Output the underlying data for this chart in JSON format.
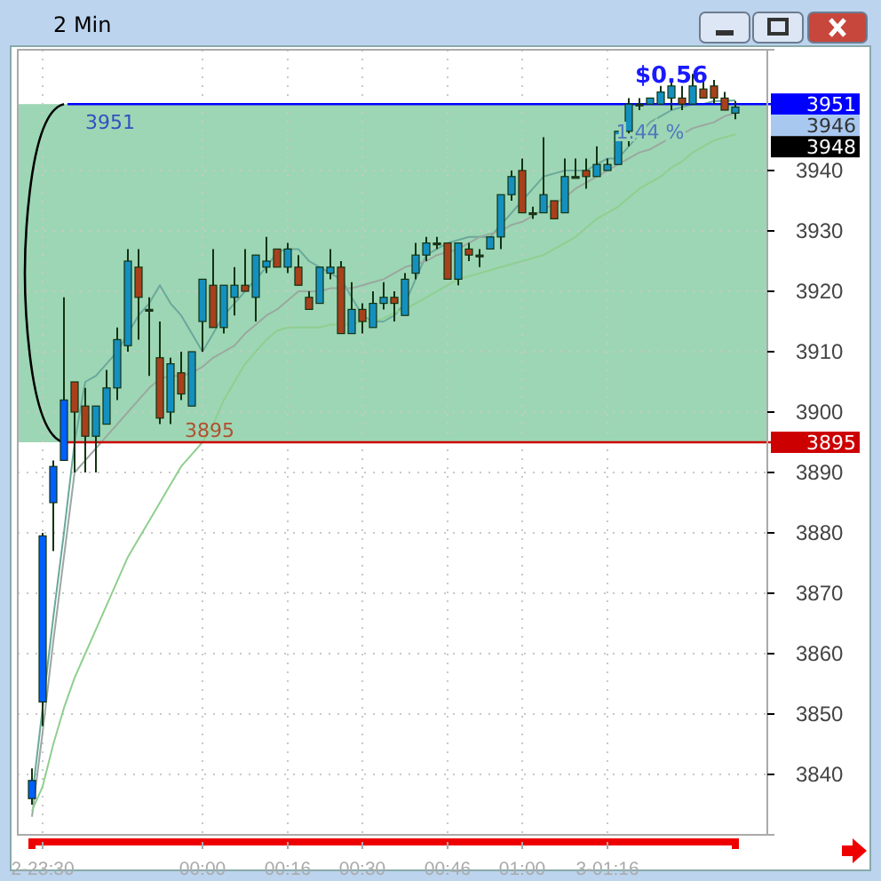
{
  "chart_data": {
    "type": "candlestick",
    "title": "2 Min",
    "categories": [
      null,
      "2-23:30",
      null,
      null,
      null,
      null,
      null,
      null,
      null,
      null,
      null,
      null,
      null,
      null,
      null,
      null,
      "00:00",
      null,
      null,
      null,
      null,
      null,
      null,
      null,
      "00:16",
      null,
      null,
      null,
      null,
      null,
      null,
      "00:30",
      null,
      null,
      null,
      null,
      null,
      null,
      null,
      "00:46",
      null,
      null,
      null,
      null,
      null,
      null,
      "01:00",
      null,
      null,
      null,
      null,
      null,
      null,
      null,
      "3-01:16",
      null,
      null,
      null,
      null,
      null,
      null,
      null,
      null,
      null,
      null,
      null,
      null
    ],
    "ohlc": [
      [
        3836,
        3841,
        3835,
        3839
      ],
      [
        3852,
        3880,
        3848,
        3879.5
      ],
      [
        3885,
        3892,
        3877,
        3891
      ],
      [
        3892,
        3919,
        3892,
        3902
      ],
      [
        3905,
        3905,
        3890,
        3900
      ],
      [
        3901,
        3904,
        3890,
        3896
      ],
      [
        3896,
        3901,
        3890,
        3901
      ],
      [
        3898,
        3907,
        3898,
        3904
      ],
      [
        3904,
        3914,
        3902,
        3912
      ],
      [
        3911,
        3927,
        3910,
        3925
      ],
      [
        3924,
        3927,
        3912,
        3919
      ],
      [
        3917,
        3919,
        3906,
        3917
      ],
      [
        3909,
        3915,
        3898,
        3899
      ],
      [
        3900,
        3909,
        3898,
        3908
      ],
      [
        3906.5,
        3910,
        3902,
        3903
      ],
      [
        3901,
        3910,
        3901,
        3910
      ],
      [
        3915,
        3922,
        3910,
        3922
      ],
      [
        3921,
        3927,
        3914,
        3914
      ],
      [
        3914,
        3921,
        3913,
        3921
      ],
      [
        3919,
        3924,
        3916,
        3921
      ],
      [
        3921,
        3927,
        3920,
        3920
      ],
      [
        3919,
        3926,
        3915,
        3926
      ],
      [
        3924,
        3929,
        3923,
        3925
      ],
      [
        3927,
        3927,
        3924,
        3924
      ],
      [
        3924,
        3928,
        3923,
        3927
      ],
      [
        3924,
        3926,
        3921,
        3921
      ],
      [
        3919,
        3920,
        3917,
        3917
      ],
      [
        3918,
        3924,
        3918,
        3924
      ],
      [
        3923,
        3927,
        3922,
        3924
      ],
      [
        3924,
        3925,
        3913,
        3913
      ],
      [
        3913,
        3921.5,
        3913,
        3917
      ],
      [
        3917,
        3918,
        3913,
        3915
      ],
      [
        3914,
        3920,
        3914,
        3918
      ],
      [
        3918,
        3921.5,
        3917,
        3919
      ],
      [
        3919,
        3920,
        3915,
        3918
      ],
      [
        3916,
        3923,
        3916,
        3922
      ],
      [
        3923,
        3928,
        3922,
        3926
      ],
      [
        3926,
        3929,
        3925,
        3928
      ],
      [
        3928,
        3929,
        3927,
        3928
      ],
      [
        3928,
        3928,
        3922,
        3922
      ],
      [
        3922,
        3928,
        3921,
        3928
      ],
      [
        3927,
        3928,
        3925,
        3926
      ],
      [
        3926,
        3927,
        3924,
        3926
      ],
      [
        3927,
        3929,
        3927,
        3929
      ],
      [
        3929,
        3936,
        3927,
        3936
      ],
      [
        3936,
        3940,
        3935,
        3939
      ],
      [
        3940,
        3942,
        3933,
        3933
      ],
      [
        3933,
        3934,
        3932,
        3933
      ],
      [
        3933,
        3945.5,
        3933,
        3936
      ],
      [
        3935,
        3935,
        3932,
        3932
      ],
      [
        3933,
        3942,
        3933,
        3939
      ],
      [
        3939,
        3942,
        3939,
        3939
      ],
      [
        3940,
        3942,
        3937,
        3939
      ],
      [
        3939,
        3944,
        3939,
        3941
      ],
      [
        3940,
        3942,
        3940,
        3941
      ],
      [
        3941,
        3946.5,
        3941,
        3946.5
      ],
      [
        3946.5,
        3952,
        3944,
        3951
      ],
      [
        3951,
        3952,
        3950,
        3951
      ],
      [
        3951,
        3952,
        3951,
        3952
      ],
      [
        3951,
        3954,
        3951,
        3953
      ],
      [
        3952,
        3955,
        3950,
        3954
      ],
      [
        3952,
        3954,
        3950,
        3951
      ],
      [
        3951,
        3956,
        3951,
        3954
      ],
      [
        3953.5,
        3955,
        3952,
        3952
      ],
      [
        3954,
        3955,
        3951,
        3952
      ],
      [
        3952,
        3953,
        3950,
        3950
      ],
      [
        3949.5,
        3951.5,
        3948.5,
        3950.5
      ]
    ],
    "colors": [
      "#0060ff",
      "#0060ff",
      "#0060ff",
      "#0060ff",
      "#a8401c",
      "#a8401c",
      "#1490c0",
      "#1490c0",
      "#1490c0",
      "#1490c0",
      "#a8401c",
      "#333333",
      "#a8401c",
      "#1490c0",
      "#a8401c",
      "#1490c0",
      "#1490c0",
      "#a8401c",
      "#1490c0",
      "#1490c0",
      "#a8401c",
      "#1490c0",
      "#1490c0",
      "#a8401c",
      "#1490c0",
      "#a8401c",
      "#a8401c",
      "#1490c0",
      "#1490c0",
      "#a8401c",
      "#1490c0",
      "#a8401c",
      "#1490c0",
      "#1490c0",
      "#a8401c",
      "#1490c0",
      "#1490c0",
      "#1490c0",
      "#333333",
      "#a8401c",
      "#1490c0",
      "#a8401c",
      "#333333",
      "#1490c0",
      "#1490c0",
      "#1490c0",
      "#a8401c",
      "#333333",
      "#1490c0",
      "#a8401c",
      "#1490c0",
      "#333333",
      "#a8401c",
      "#1490c0",
      "#1490c0",
      "#1490c0",
      "#1490c0",
      "#333333",
      "#1490c0",
      "#1490c0",
      "#1490c0",
      "#a8401c",
      "#1490c0",
      "#a8401c",
      "#a8401c",
      "#a8401c",
      "#1490c0"
    ],
    "series": [
      {
        "type": "line",
        "color": "#6aa89c",
        "values": [
          3836,
          3851,
          3866,
          3880,
          3895,
          3905,
          3906,
          3908,
          3910,
          3913,
          3916,
          3918,
          3921,
          3918,
          3916,
          3913,
          3910,
          3913,
          3916,
          3918,
          3920,
          3922,
          3924,
          3926.5,
          3927,
          3927,
          3925,
          3924,
          3923,
          3922,
          3919,
          3916,
          3915,
          3915,
          3916,
          3918,
          3922,
          3926,
          3927,
          3928,
          3928.5,
          3929,
          3929,
          3929,
          3931,
          3933,
          3935,
          3937,
          3939,
          3939.5,
          3940,
          3940,
          3940,
          3941,
          3942,
          3942,
          3944,
          3946,
          3948,
          3949,
          3950,
          3950.5,
          3951,
          3951,
          3951.5,
          3951.5,
          3951.6
        ]
      },
      {
        "type": "line",
        "color": "#9aa8a0",
        "values": [
          3833,
          3847,
          3862,
          3876,
          3890,
          3892,
          3894,
          3896,
          3898,
          3900,
          3902,
          3904,
          3905.5,
          3906,
          3906,
          3906.5,
          3907.5,
          3909,
          3910,
          3911,
          3913,
          3914.5,
          3916,
          3917,
          3918.5,
          3920,
          3920,
          3920,
          3920.5,
          3920.5,
          3920.5,
          3921,
          3921.5,
          3922,
          3923,
          3924,
          3924.5,
          3925,
          3926,
          3926.5,
          3927,
          3928,
          3929,
          3929.5,
          3930,
          3931,
          3931.5,
          3932.5,
          3933.5,
          3934.5,
          3935.5,
          3937,
          3938,
          3939,
          3940,
          3941,
          3942,
          3943,
          3943.5,
          3944.5,
          3945.5,
          3946,
          3947,
          3947.5,
          3948,
          3949,
          3949.5
        ]
      },
      {
        "type": "line",
        "color": "#8fcf8f",
        "values": [
          3834,
          3838,
          3845,
          3851,
          3856,
          3860,
          3864,
          3868,
          3872,
          3876,
          3879,
          3882,
          3885,
          3888,
          3891,
          3893,
          3895,
          3898,
          3902,
          3905,
          3908,
          3910,
          3912,
          3913.5,
          3914,
          3914,
          3914,
          3914,
          3914.5,
          3914.5,
          3914.5,
          3915,
          3915,
          3915.5,
          3916.5,
          3917,
          3918,
          3919,
          3920,
          3921,
          3922,
          3922.5,
          3923,
          3923.5,
          3924,
          3924.5,
          3925,
          3925.5,
          3926,
          3927,
          3928,
          3929,
          3930.5,
          3932,
          3933,
          3934,
          3935.5,
          3937,
          3938,
          3939,
          3940.5,
          3941.5,
          3943,
          3944,
          3945,
          3945.5,
          3946
        ]
      }
    ],
    "ylim": [
      3830,
      3960
    ],
    "yticks": [
      3840,
      3850,
      3860,
      3870,
      3880,
      3890,
      3900,
      3910,
      3920,
      3930,
      3940
    ],
    "grid": true,
    "bands": [
      {
        "axis": "y",
        "from": 3895,
        "to": 3951,
        "color": "#9dd6b4"
      }
    ],
    "ref_lines": [
      {
        "axis": "y",
        "value": 3951,
        "label": "3951",
        "color": "#0000ff"
      },
      {
        "axis": "y",
        "value": 3895,
        "label": "3895",
        "color": "#cc0000"
      }
    ],
    "annotations": [
      {
        "text": "3951",
        "y": 3951
      },
      {
        "text": "3895",
        "y": 3895
      },
      "$0.56",
      "1.44 %",
      "3946",
      "3948"
    ]
  }
}
